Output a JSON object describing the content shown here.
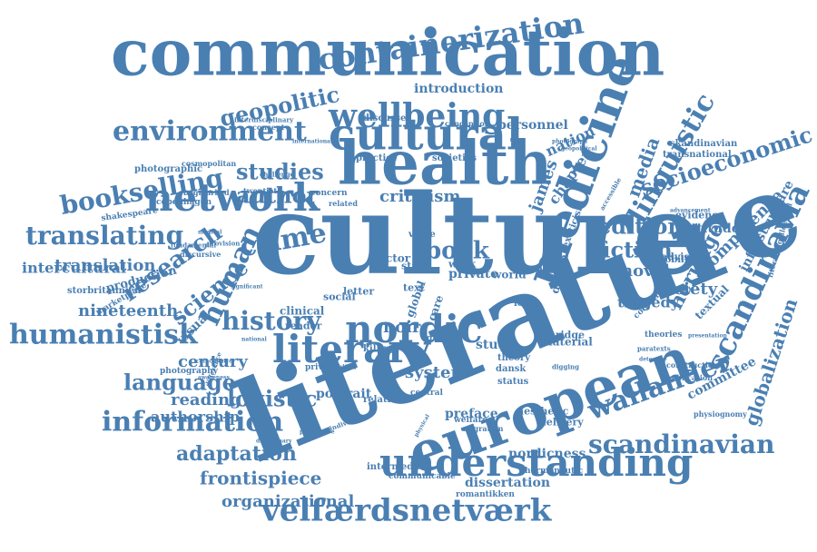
{
  "colors": {
    "word": "#4a7fb2",
    "background": "#ffffff"
  },
  "words": [
    "culture",
    "literature",
    "communication",
    "health",
    "european",
    "cultural",
    "medicine",
    "understanding",
    "network",
    "nordic",
    "literary",
    "wellbeing",
    "containerization",
    "velfærdsnetværk",
    "scandinavia",
    "environment",
    "humanistisk",
    "information",
    "bookselling",
    "scandinavian",
    "translating",
    "history",
    "wallander",
    "crime",
    "human",
    "linguistic",
    "fiction",
    "edition",
    "socioeconomic",
    "globalization",
    "heritage",
    "geopolitic",
    "studies",
    "author",
    "research",
    "science",
    "language",
    "logistic",
    "adaptation",
    "frontispiece",
    "organizational",
    "translation",
    "intercultural",
    "nineteenth",
    "century",
    "reading",
    "authorship",
    "book",
    "media",
    "society",
    "novel",
    "competence",
    "tragedy",
    "criticism",
    "james",
    "chapter",
    "nation",
    "system",
    "noir",
    "introduction",
    "personnel",
    "infrastructure",
    "committee",
    "dissertation",
    "nordicness",
    "portrait",
    "preface",
    "study",
    "clinical",
    "reader",
    "killing",
    "visual",
    "private",
    "factor",
    "literaturgylldendal",
    "advisory",
    "attitude",
    "evidence",
    "mobility",
    "textual",
    "design",
    "material",
    "world",
    "work",
    "state",
    "social",
    "letter",
    "bridge",
    "status",
    "global",
    "local",
    "care",
    "aesthetic",
    "delivery",
    "hermeneutic",
    "romantikken",
    "intermedial",
    "communicable",
    "photography",
    "storbritannien",
    "production",
    "marketplace",
    "skandinavian",
    "transnational",
    "photographic",
    "cosmopolitan",
    "copenhagen",
    "shakespeare",
    "bogmarked",
    "twentieth",
    "concern",
    "discusses",
    "conception",
    "societies",
    "practice",
    "interdisciplinary",
    "international",
    "exoticism",
    "geopolitical",
    "photograph",
    "accessible",
    "advancement",
    "theories",
    "paratexts",
    "detective",
    "construction",
    "publication",
    "presentation",
    "physiognomy",
    "condition",
    "theory",
    "dansk",
    "value",
    "great",
    "privacy",
    "whiten",
    "concept",
    "challenge",
    "discursive",
    "fundamental",
    "provision",
    "significant",
    "individual",
    "perspective",
    "difference",
    "awareness",
    "coincidence",
    "relation",
    "central",
    "migration",
    "welfare",
    "physical",
    "disciplinary",
    "medical",
    "related",
    "national",
    "text",
    "digging"
  ]
}
